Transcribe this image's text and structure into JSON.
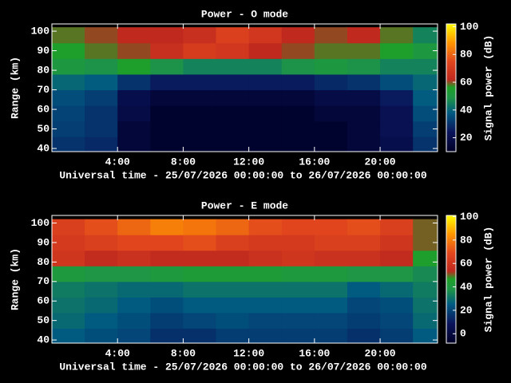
{
  "chart_data": [
    {
      "type": "heatmap",
      "title": "Power - O mode",
      "x_label": "Universal time - 25/07/2026 00:00:00 to 26/07/2026 00:00:00",
      "y_label": "Range (km)",
      "colorbar_label": "Signal power (dB)",
      "x": [
        1,
        3,
        5,
        7,
        9,
        11,
        13,
        15,
        17,
        19,
        21,
        23
      ],
      "y": [
        42,
        50,
        58,
        66,
        74,
        82,
        90,
        98
      ],
      "values": [
        [
          30,
          28,
          15,
          12,
          12,
          12,
          12,
          12,
          12,
          15,
          20,
          30
        ],
        [
          32,
          30,
          15,
          12,
          12,
          12,
          12,
          12,
          12,
          15,
          22,
          32
        ],
        [
          33,
          30,
          18,
          12,
          12,
          12,
          12,
          12,
          15,
          15,
          22,
          35
        ],
        [
          35,
          32,
          20,
          15,
          15,
          15,
          15,
          15,
          18,
          18,
          25,
          38
        ],
        [
          40,
          38,
          30,
          25,
          25,
          25,
          25,
          25,
          28,
          30,
          35,
          40
        ],
        [
          50,
          48,
          55,
          48,
          45,
          45,
          45,
          48,
          50,
          48,
          45,
          45
        ],
        [
          55,
          58,
          60,
          65,
          70,
          68,
          62,
          60,
          58,
          58,
          55,
          50
        ],
        [
          58,
          60,
          62,
          62,
          65,
          72,
          68,
          62,
          60,
          62,
          58,
          45
        ]
      ],
      "xlim": [
        0,
        23.5
      ],
      "ylim": [
        38.4,
        103.7
      ],
      "xticks": [
        {
          "value": 4,
          "label": "4:00"
        },
        {
          "value": 8,
          "label": "8:00"
        },
        {
          "value": 12,
          "label": "12:00"
        },
        {
          "value": 16,
          "label": "16:00"
        },
        {
          "value": 20,
          "label": "20:00"
        }
      ],
      "yticks": [
        40,
        50,
        60,
        70,
        80,
        90,
        100
      ],
      "clim": [
        10,
        102
      ],
      "cticks": [
        20,
        40,
        60,
        80,
        100
      ]
    },
    {
      "type": "heatmap",
      "title": "Power - E mode",
      "x_label": "Universal time - 25/07/2026 00:00:00 to 26/07/2026 00:00:00",
      "y_label": "Range (km)",
      "colorbar_label": "Signal power (dB)",
      "x": [
        1,
        3,
        5,
        7,
        9,
        11,
        13,
        15,
        17,
        19,
        21,
        23
      ],
      "y": [
        42,
        50,
        58,
        66,
        74,
        82,
        90,
        98
      ],
      "values": [
        [
          25,
          22,
          20,
          15,
          15,
          18,
          18,
          18,
          18,
          15,
          18,
          25
        ],
        [
          28,
          25,
          22,
          18,
          20,
          22,
          20,
          20,
          20,
          18,
          20,
          28
        ],
        [
          30,
          28,
          25,
          22,
          25,
          25,
          25,
          25,
          25,
          20,
          22,
          30
        ],
        [
          32,
          30,
          28,
          28,
          30,
          30,
          30,
          30,
          30,
          25,
          28,
          32
        ],
        [
          40,
          38,
          38,
          40,
          42,
          42,
          42,
          40,
          40,
          38,
          38,
          35
        ],
        [
          60,
          55,
          58,
          55,
          55,
          55,
          58,
          60,
          58,
          58,
          55,
          45
        ],
        [
          62,
          65,
          68,
          68,
          70,
          65,
          62,
          62,
          65,
          65,
          60,
          50
        ],
        [
          65,
          70,
          75,
          80,
          78,
          75,
          70,
          68,
          68,
          70,
          65,
          50
        ]
      ],
      "xlim": [
        0,
        23.5
      ],
      "ylim": [
        38.4,
        103.9
      ],
      "xticks": [
        {
          "value": 4,
          "label": "4:00"
        },
        {
          "value": 8,
          "label": "8:00"
        },
        {
          "value": 12,
          "label": "12:00"
        },
        {
          "value": 16,
          "label": "16:00"
        },
        {
          "value": 20,
          "label": "20:00"
        }
      ],
      "yticks": [
        40,
        50,
        60,
        70,
        80,
        90,
        100
      ],
      "clim": [
        -8,
        101
      ],
      "cticks": [
        0,
        20,
        40,
        60,
        80,
        100
      ]
    }
  ]
}
